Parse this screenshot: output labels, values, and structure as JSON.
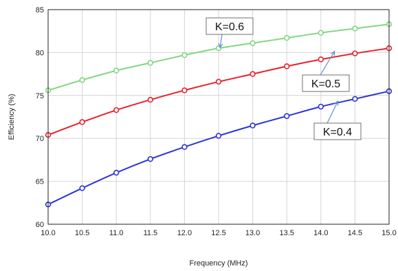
{
  "chart_data": {
    "type": "line",
    "title": "",
    "xlabel": "Frequency (MHz)",
    "ylabel": "Efficiency (%)",
    "xlim": [
      10.0,
      15.0
    ],
    "ylim": [
      60,
      85
    ],
    "xticks": [
      "10.0",
      "10.5",
      "11.0",
      "11.5",
      "12.0",
      "12.5",
      "13.0",
      "13.5",
      "14.0",
      "14.5",
      "15.0"
    ],
    "yticks": [
      "60",
      "65",
      "70",
      "75",
      "80",
      "85"
    ],
    "grid": true,
    "x": [
      10.0,
      10.5,
      11.0,
      11.5,
      12.0,
      12.5,
      13.0,
      13.5,
      14.0,
      14.5,
      15.0
    ],
    "series": [
      {
        "name": "K=0.6",
        "color": "#7fd87f",
        "values": [
          75.6,
          76.8,
          77.9,
          78.8,
          79.7,
          80.5,
          81.1,
          81.7,
          82.3,
          82.8,
          83.3
        ]
      },
      {
        "name": "K=0.5",
        "color": "#e8202a",
        "values": [
          70.4,
          71.9,
          73.3,
          74.5,
          75.6,
          76.6,
          77.5,
          78.4,
          79.2,
          79.9,
          80.5
        ]
      },
      {
        "name": "K=0.4",
        "color": "#2b33d6",
        "values": [
          62.3,
          64.2,
          66.0,
          67.6,
          69.0,
          70.3,
          71.5,
          72.6,
          73.7,
          74.6,
          75.5
        ]
      }
    ],
    "annotations": [
      {
        "text": "K=0.6",
        "series": 0
      },
      {
        "text": "K=0.5",
        "series": 1
      },
      {
        "text": "K=0.4",
        "series": 2
      }
    ]
  }
}
